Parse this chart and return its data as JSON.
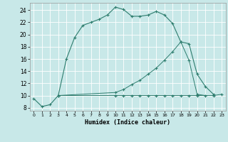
{
  "xlabel": "Humidex (Indice chaleur)",
  "background_color": "#c8e8e8",
  "grid_color": "#ffffff",
  "line_color": "#2e7d6e",
  "xlim": [
    -0.5,
    23.5
  ],
  "ylim": [
    7.5,
    25.2
  ],
  "xticks": [
    0,
    1,
    2,
    3,
    4,
    5,
    6,
    7,
    8,
    9,
    10,
    11,
    12,
    13,
    14,
    15,
    16,
    17,
    18,
    19,
    20,
    21,
    22,
    23
  ],
  "yticks": [
    8,
    10,
    12,
    14,
    16,
    18,
    20,
    22,
    24
  ],
  "curve1_x": [
    0,
    1,
    2,
    3,
    4,
    5,
    6,
    7,
    8,
    9,
    10,
    11,
    12,
    13,
    14,
    15,
    16,
    17,
    18,
    19,
    20,
    21,
    22
  ],
  "curve1_y": [
    9.5,
    8.2,
    8.5,
    10.0,
    16.0,
    19.5,
    21.5,
    22.0,
    22.5,
    23.2,
    24.5,
    24.1,
    23.0,
    23.0,
    23.2,
    23.8,
    23.2,
    21.8,
    18.8,
    18.5,
    13.5,
    11.5,
    10.2
  ],
  "curve2_x": [
    3,
    10,
    11,
    12,
    13,
    14,
    15,
    16,
    17,
    18,
    19,
    20,
    22,
    23
  ],
  "curve2_y": [
    10.0,
    10.0,
    10.0,
    10.0,
    10.0,
    10.0,
    10.0,
    10.0,
    10.0,
    10.0,
    10.0,
    10.0,
    10.0,
    10.2
  ],
  "curve3_x": [
    3,
    10,
    11,
    12,
    13,
    14,
    15,
    16,
    17,
    18,
    19,
    20,
    21
  ],
  "curve3_y": [
    10.0,
    10.5,
    11.0,
    11.8,
    12.5,
    13.5,
    14.5,
    15.8,
    17.2,
    18.8,
    15.8,
    10.2,
    10.0
  ]
}
